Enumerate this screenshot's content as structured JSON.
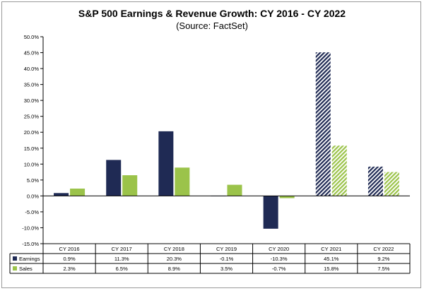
{
  "chart_data": {
    "type": "bar",
    "title": "S&P 500 Earnings & Revenue Growth:  CY 2016 - CY 2022",
    "subtitle": "(Source: FactSet)",
    "categories": [
      "CY 2016",
      "CY 2017",
      "CY 2018",
      "CY 2019",
      "CY 2020",
      "CY 2021",
      "CY 2022"
    ],
    "series": [
      {
        "name": "Earnings",
        "values": [
          0.9,
          11.3,
          20.3,
          -0.1,
          -10.3,
          45.1,
          9.2
        ],
        "labels": [
          "0.9%",
          "11.3%",
          "20.3%",
          "-0.1%",
          "-10.3%",
          "45.1%",
          "9.2%"
        ],
        "color": "#1f2a54",
        "hatched_from_index": 5
      },
      {
        "name": "Sales",
        "values": [
          2.3,
          6.5,
          8.9,
          3.5,
          -0.7,
          15.8,
          7.5
        ],
        "labels": [
          "2.3%",
          "6.5%",
          "8.9%",
          "3.5%",
          "-0.7%",
          "15.8%",
          "7.5%"
        ],
        "color": "#9bc34a",
        "hatched_from_index": 5
      }
    ],
    "ylim": [
      -15,
      50
    ],
    "yticks": [
      -15,
      -10,
      -5,
      0,
      5,
      10,
      15,
      20,
      25,
      30,
      35,
      40,
      45,
      50
    ],
    "ytick_labels": [
      "-15.0%",
      "-10.0%",
      "-5.0%",
      "0.0%",
      "5.0%",
      "10.0%",
      "15.0%",
      "20.0%",
      "25.0%",
      "30.0%",
      "35.0%",
      "40.0%",
      "45.0%",
      "50.0%"
    ],
    "grid": false,
    "legend": "data-table-below"
  }
}
